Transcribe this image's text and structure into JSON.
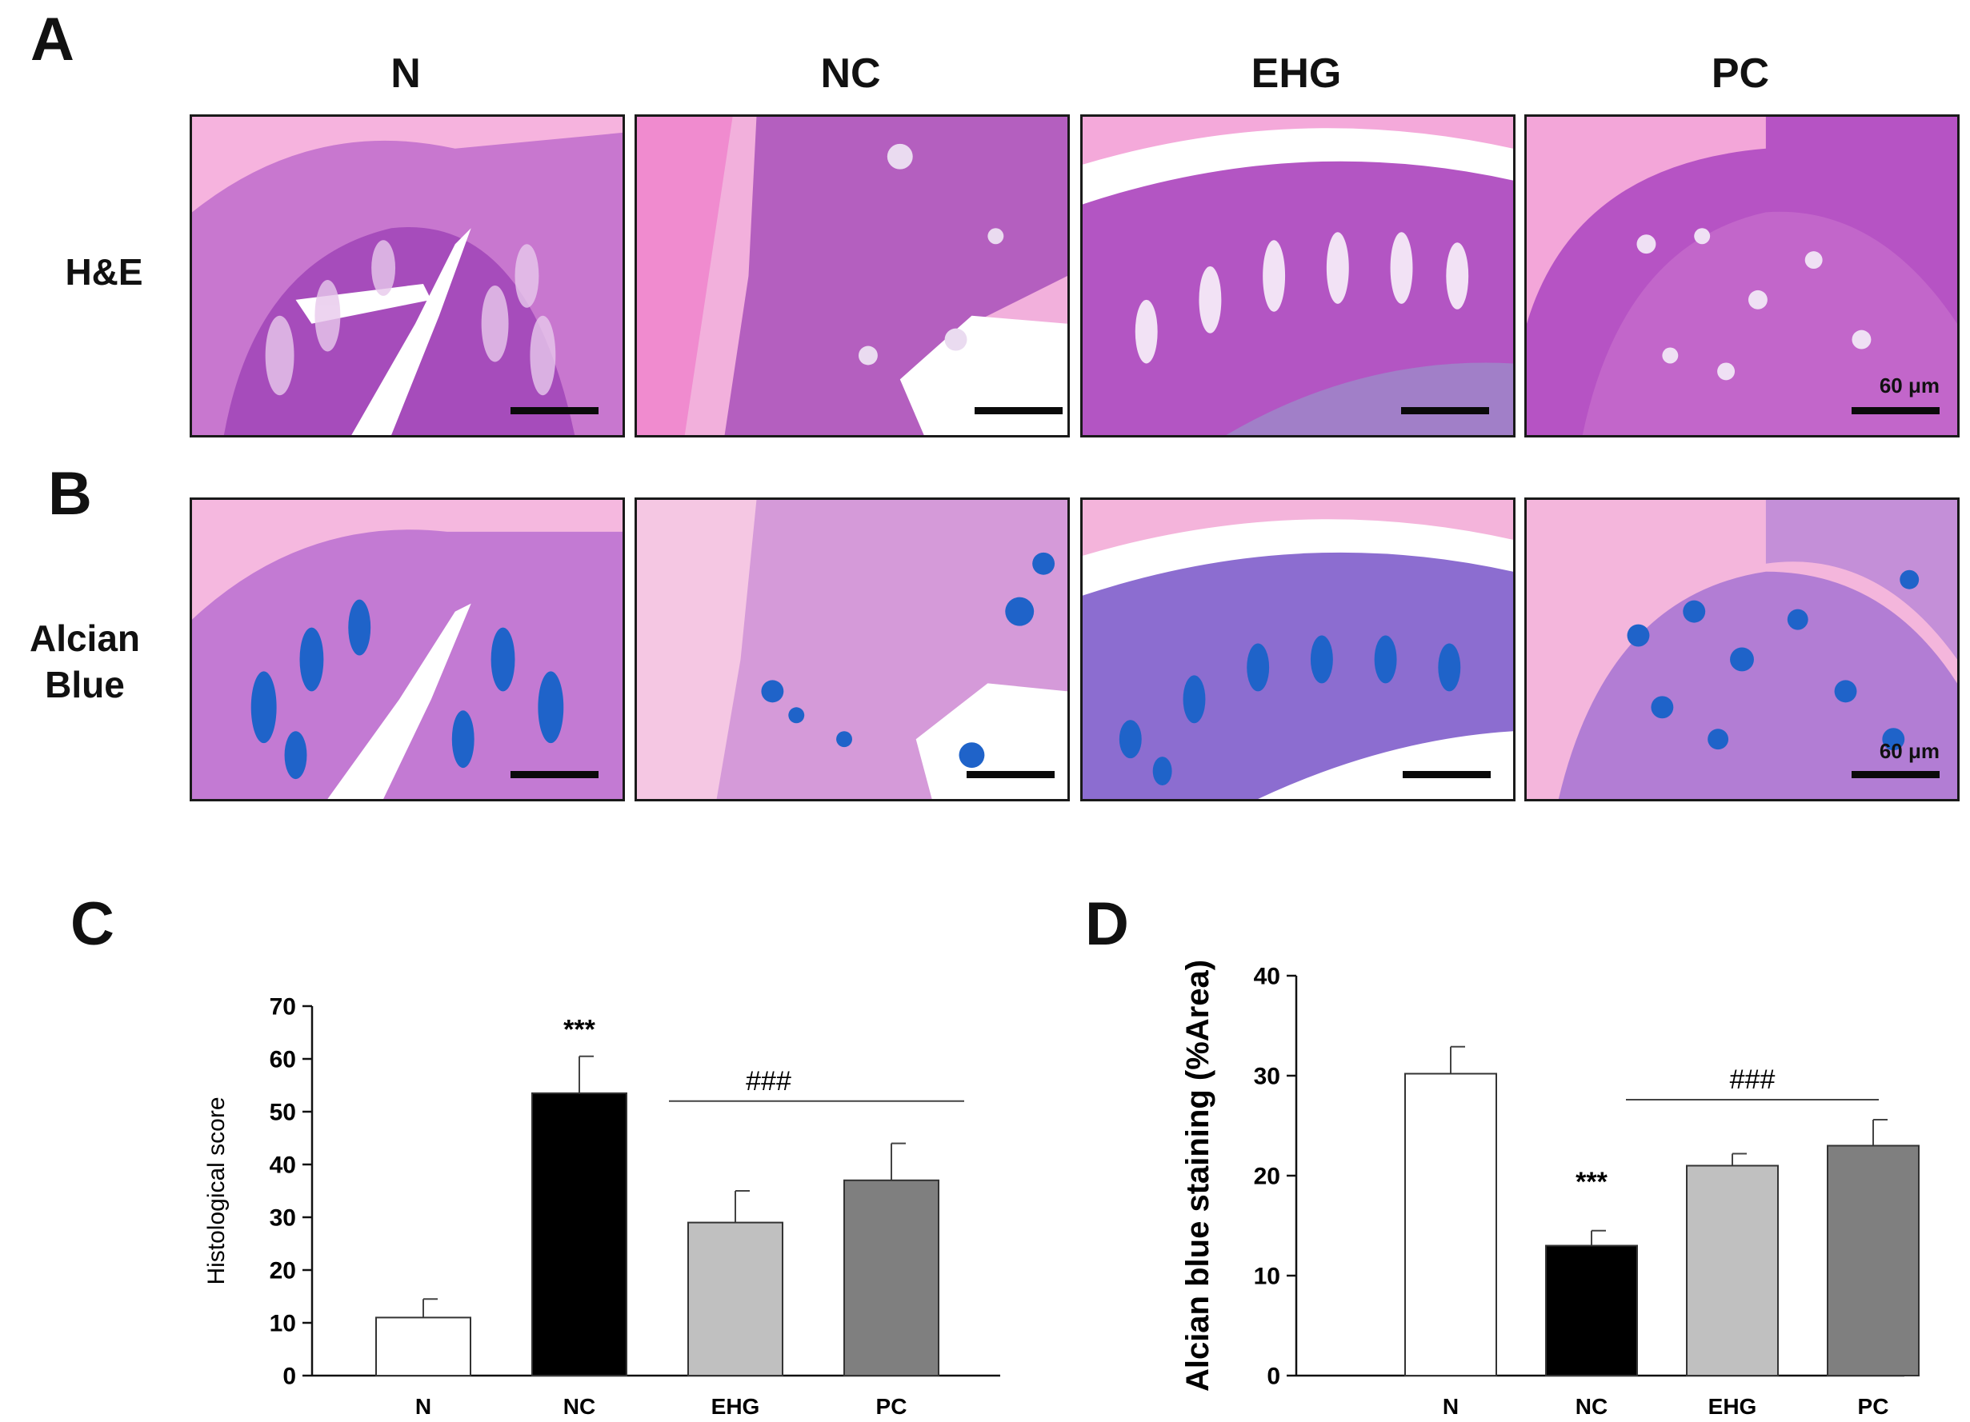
{
  "panels": {
    "a": "A",
    "b": "B",
    "c": "C",
    "d": "D"
  },
  "groups": [
    "N",
    "NC",
    "EHG",
    "PC"
  ],
  "rows": {
    "he": "H&E",
    "alcian_line1": "Alcian",
    "alcian_line2": "Blue"
  },
  "scale_label": "60 μm",
  "colors": {
    "he_bg": "#f3a6d9",
    "he_tissue": "#b24cc0",
    "alcian_bg": "#f2b6dc",
    "alcian_blue": "#1f63c9",
    "bar_N": "#ffffff",
    "bar_NC": "#000000",
    "bar_EHG": "#c0c0c0",
    "bar_PC": "#7f7f7f"
  },
  "chart_data": [
    {
      "type": "bar",
      "panel": "C",
      "categories": [
        "N",
        "NC",
        "EHG",
        "PC"
      ],
      "values": [
        11,
        53.5,
        29,
        37
      ],
      "errors": [
        3.5,
        7,
        6,
        7
      ],
      "ylabel": "Histological score",
      "xlabel": "",
      "ylim": [
        0,
        70
      ],
      "yticks": [
        0,
        10,
        20,
        30,
        40,
        50,
        60,
        70
      ],
      "annotations": {
        "nc": "***",
        "group": "###"
      }
    },
    {
      "type": "bar",
      "panel": "D",
      "categories": [
        "N",
        "NC",
        "EHG",
        "PC"
      ],
      "values": [
        30.2,
        13,
        21,
        23
      ],
      "errors": [
        2.7,
        1.5,
        1.2,
        2.6
      ],
      "ylabel": "Alcian blue staining (%Area)",
      "xlabel": "",
      "ylim": [
        0,
        40
      ],
      "yticks": [
        0,
        10,
        20,
        30,
        40
      ],
      "annotations": {
        "nc": "***",
        "group": "###"
      }
    }
  ]
}
